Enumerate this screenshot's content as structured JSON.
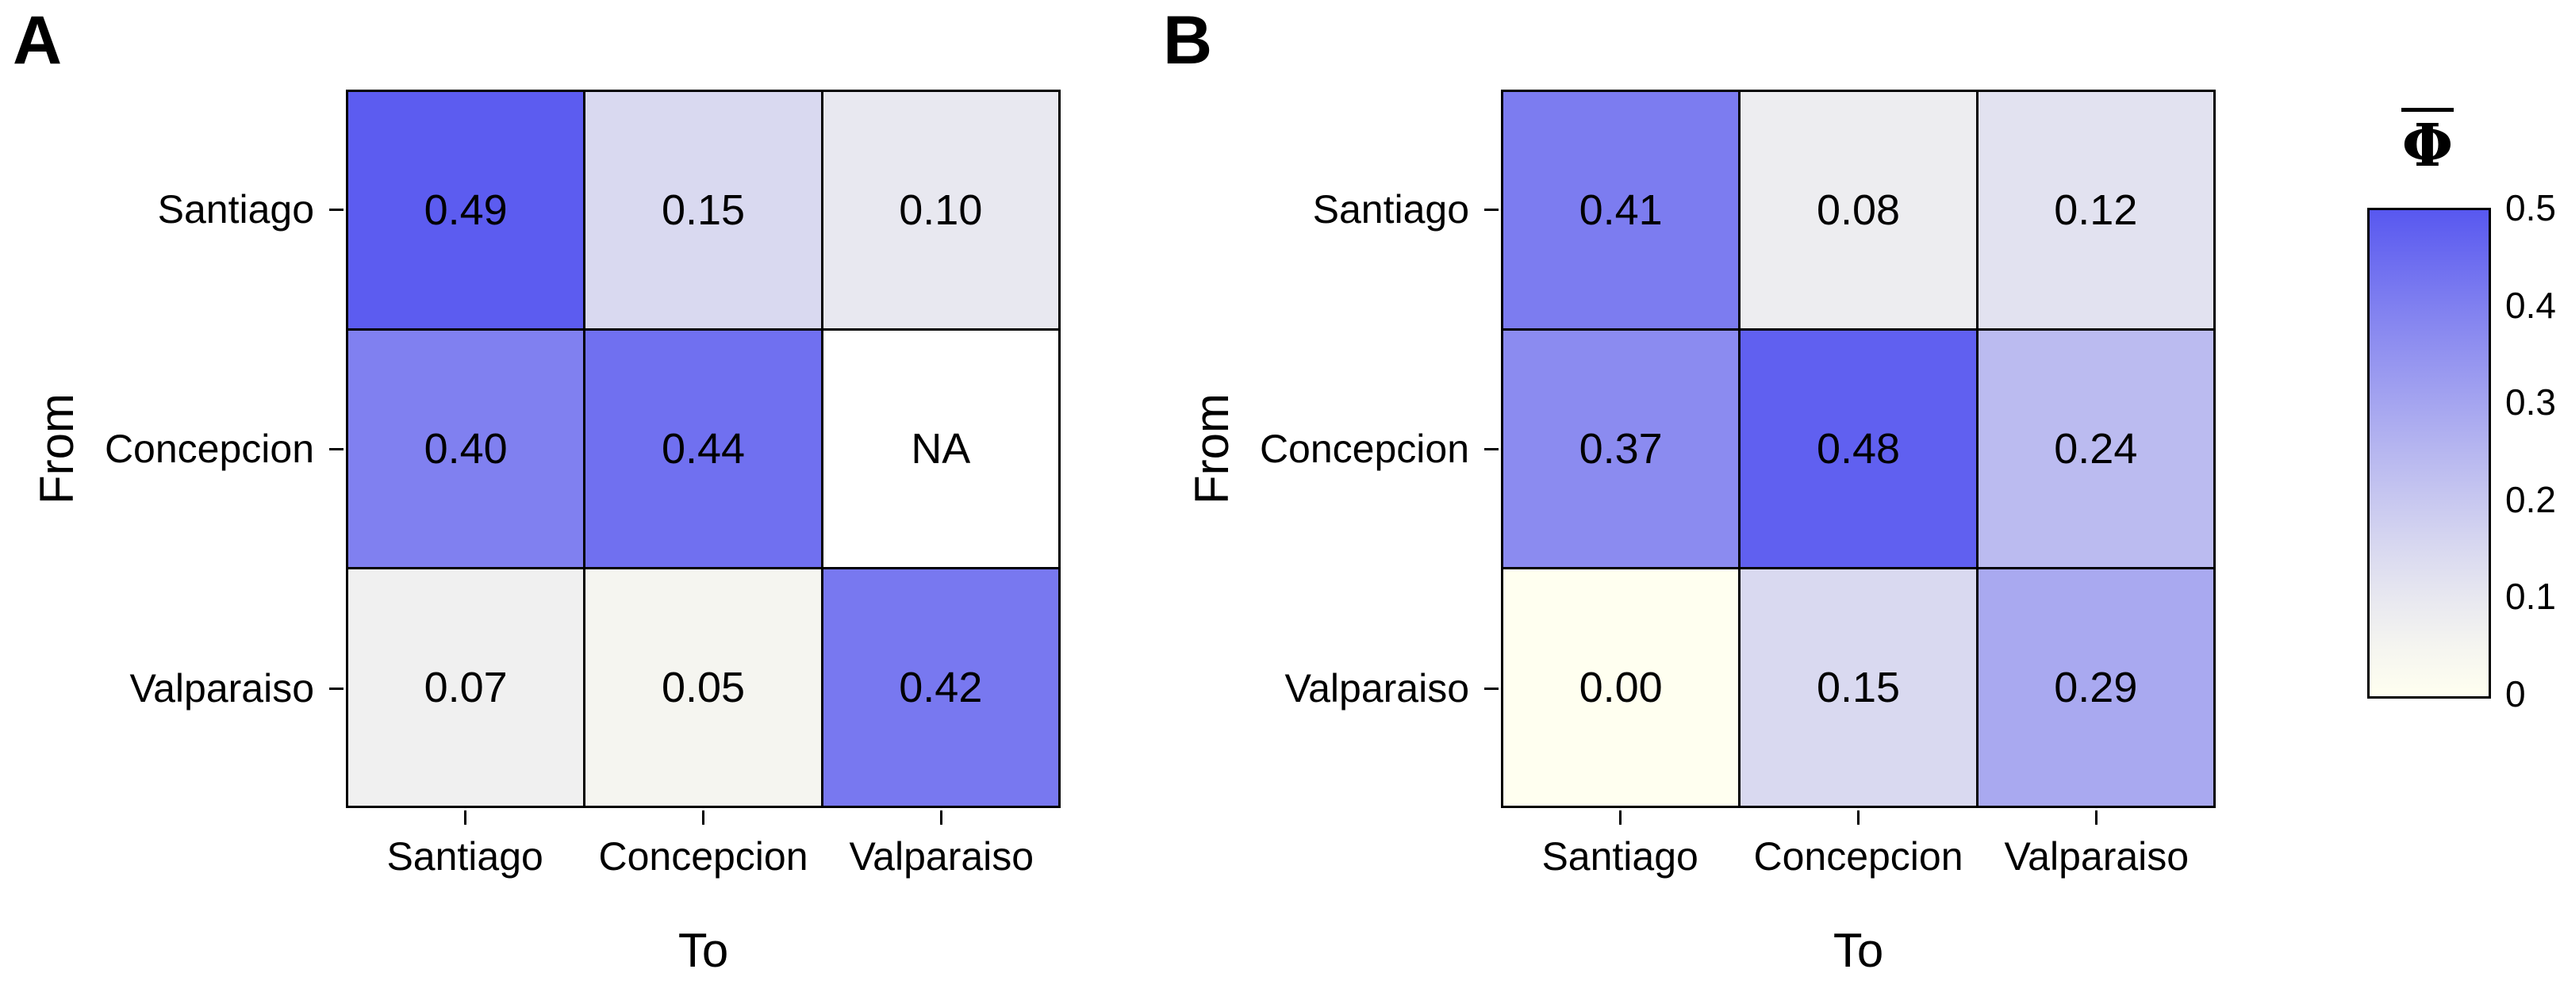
{
  "chart_data": [
    {
      "type": "heatmap",
      "panel_label": "A",
      "xlabel": "To",
      "ylabel": "From",
      "x_categories": [
        "Santiago",
        "Concepcion",
        "Valparaiso"
      ],
      "y_categories": [
        "Santiago",
        "Concepcion",
        "Valparaiso"
      ],
      "values": [
        [
          0.49,
          0.15,
          0.1
        ],
        [
          0.4,
          0.44,
          null
        ],
        [
          0.07,
          0.05,
          0.42
        ]
      ],
      "cell_labels": [
        [
          "0.49",
          "0.15",
          "0.10"
        ],
        [
          "0.40",
          "0.44",
          "NA"
        ],
        [
          "0.07",
          "0.05",
          "0.42"
        ]
      ],
      "value_range": [
        0,
        0.5
      ],
      "grid": "on"
    },
    {
      "type": "heatmap",
      "panel_label": "B",
      "xlabel": "To",
      "ylabel": "From",
      "x_categories": [
        "Santiago",
        "Concepcion",
        "Valparaiso"
      ],
      "y_categories": [
        "Santiago",
        "Concepcion",
        "Valparaiso"
      ],
      "values": [
        [
          0.41,
          0.08,
          0.12
        ],
        [
          0.37,
          0.48,
          0.24
        ],
        [
          0.0,
          0.15,
          0.29
        ]
      ],
      "cell_labels": [
        [
          "0.41",
          "0.08",
          "0.12"
        ],
        [
          "0.37",
          "0.48",
          "0.24"
        ],
        [
          "0.00",
          "0.15",
          "0.29"
        ]
      ],
      "value_range": [
        0,
        0.5
      ],
      "grid": "on"
    }
  ],
  "legend": {
    "title": "Φ",
    "overbar": true,
    "position": "right",
    "min": 0,
    "max": 0.5,
    "ticks": [
      {
        "label": "0.5",
        "value": 0.5
      },
      {
        "label": "0.4",
        "value": 0.4
      },
      {
        "label": "0.3",
        "value": 0.3
      },
      {
        "label": "0.2",
        "value": 0.2
      },
      {
        "label": "0.1",
        "value": 0.1
      },
      {
        "label": "0",
        "value": 0.0
      }
    ]
  },
  "colormap": {
    "low": "#FFFFF0",
    "high": "#5858F0",
    "na_color": "#FFFFFF",
    "gamma": 1.22,
    "max": 0.5
  },
  "colors": {
    "border": "#000000",
    "text": "#000000",
    "background": "#FFFFFF"
  }
}
